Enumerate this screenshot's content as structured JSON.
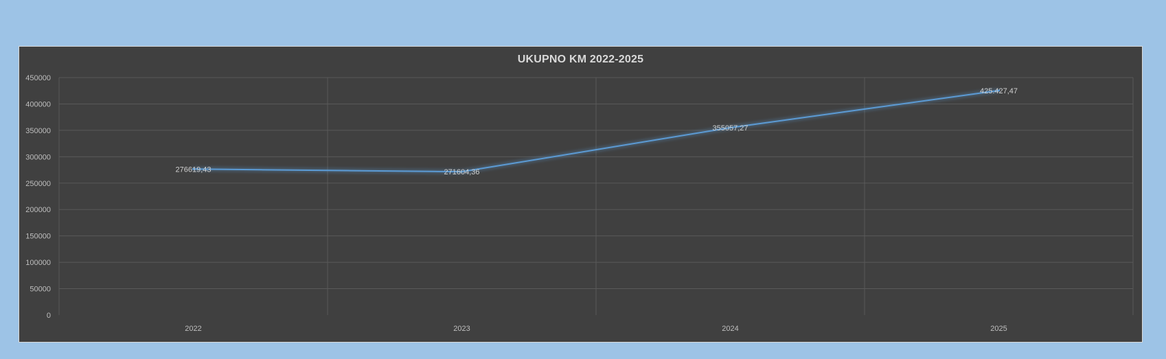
{
  "chart_data": {
    "type": "line",
    "title": "UKUPNO KM 2022-2025",
    "xlabel": "",
    "ylabel": "",
    "categories": [
      "2022",
      "2023",
      "2024",
      "2025"
    ],
    "values": [
      276619.43,
      271604.36,
      355057.27,
      425427.47
    ],
    "data_labels": [
      "276619,43",
      "271604,36",
      "355057,27",
      "425.427,47"
    ],
    "y_ticks": [
      "0",
      "50000",
      "100000",
      "150000",
      "200000",
      "250000",
      "300000",
      "350000",
      "400000",
      "450000"
    ],
    "ylim": [
      0,
      450000
    ],
    "grid": true,
    "legend": "none",
    "colors": {
      "page_background": "#9dc3e6",
      "plot_background": "#404040",
      "line": "#5b9bd5",
      "gridline": "#595959",
      "text": "#d9d9d9"
    }
  }
}
